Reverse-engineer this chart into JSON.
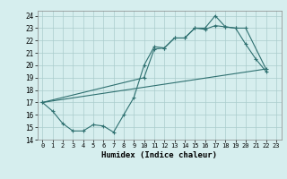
{
  "line1_x": [
    0,
    1,
    2,
    3,
    4,
    5,
    6,
    7,
    8,
    9,
    10,
    11,
    12,
    13,
    14,
    15,
    16,
    17,
    18,
    19,
    20,
    21,
    22
  ],
  "line1_y": [
    17.0,
    16.3,
    15.3,
    14.7,
    14.7,
    15.2,
    15.1,
    14.6,
    16.0,
    17.4,
    20.0,
    21.5,
    21.4,
    22.2,
    22.2,
    23.0,
    23.0,
    24.0,
    23.1,
    23.0,
    21.7,
    20.5,
    19.5
  ],
  "line2_x": [
    0,
    10,
    11,
    12,
    13,
    14,
    15,
    16,
    17,
    18,
    19,
    20,
    22
  ],
  "line2_y": [
    17.0,
    19.0,
    21.3,
    21.4,
    22.2,
    22.2,
    23.0,
    22.9,
    23.2,
    23.1,
    23.0,
    23.0,
    19.7
  ],
  "line3_x": [
    0,
    22
  ],
  "line3_y": [
    17.0,
    19.7
  ],
  "color": "#2e7070",
  "bg_color": "#d6eeee",
  "grid_color": "#aacccc",
  "xlabel": "Humidex (Indice chaleur)",
  "xlim": [
    -0.5,
    23.5
  ],
  "ylim": [
    14,
    24.4
  ],
  "yticks": [
    14,
    15,
    16,
    17,
    18,
    19,
    20,
    21,
    22,
    23,
    24
  ],
  "xticks": [
    0,
    1,
    2,
    3,
    4,
    5,
    6,
    7,
    8,
    9,
    10,
    11,
    12,
    13,
    14,
    15,
    16,
    17,
    18,
    19,
    20,
    21,
    22,
    23
  ]
}
